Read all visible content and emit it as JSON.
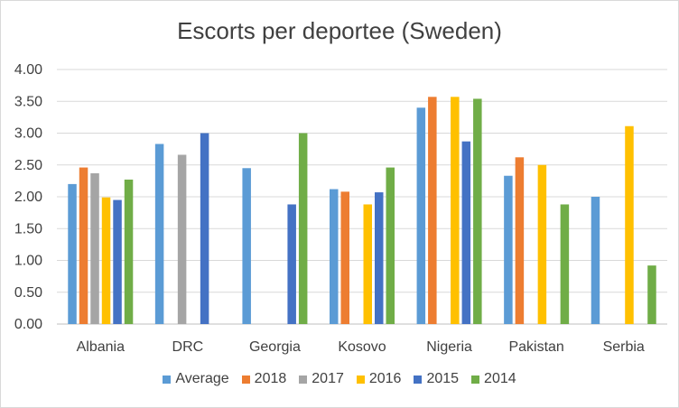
{
  "chart_data": {
    "type": "bar",
    "title": "Escorts per deportee (Sweden)",
    "xlabel": "",
    "ylabel": "",
    "ylim": [
      0,
      4
    ],
    "yticks": [
      "0.00",
      "0.50",
      "1.00",
      "1.50",
      "2.00",
      "2.50",
      "3.00",
      "3.50",
      "4.00"
    ],
    "categories": [
      "Albania",
      "DRC",
      "Georgia",
      "Kosovo",
      "Nigeria",
      "Pakistan",
      "Serbia"
    ],
    "grid": true,
    "legend_position": "bottom",
    "series": [
      {
        "name": "Average",
        "color": "#5b9bd5",
        "values": [
          2.2,
          2.83,
          2.45,
          2.12,
          3.4,
          2.33,
          2.0
        ]
      },
      {
        "name": "2018",
        "color": "#ed7d31",
        "values": [
          2.46,
          null,
          null,
          2.08,
          3.57,
          2.62,
          null
        ]
      },
      {
        "name": "2017",
        "color": "#a5a5a5",
        "values": [
          2.37,
          2.66,
          null,
          null,
          null,
          null,
          null
        ]
      },
      {
        "name": "2016",
        "color": "#ffc000",
        "values": [
          1.99,
          null,
          null,
          1.88,
          3.57,
          2.5,
          3.11
        ]
      },
      {
        "name": "2015",
        "color": "#4472c4",
        "values": [
          1.95,
          3.0,
          1.88,
          2.07,
          2.87,
          null,
          null
        ]
      },
      {
        "name": "2014",
        "color": "#70ad47",
        "values": [
          2.27,
          null,
          3.0,
          2.46,
          3.54,
          1.88,
          0.92
        ]
      }
    ]
  }
}
